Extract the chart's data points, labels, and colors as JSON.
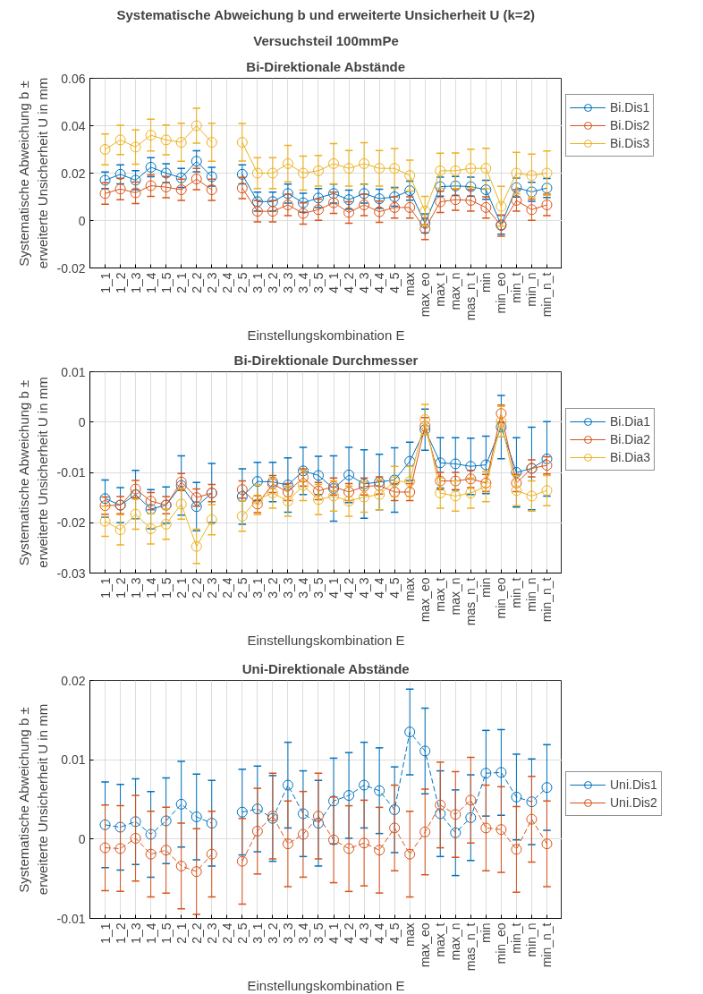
{
  "chart_data": [
    {
      "type": "line",
      "annotations": [
        "Systematische Abweichung b und erweiterte Unsicherheit U (k=2)",
        "Versuchsteil 100mmPe"
      ],
      "title": "Bi-Direktionale Abstände",
      "xlabel": "Einstellungskombination E",
      "ylabel": "Systematische Abweichung b ±\nerweiterte Unsicherheit U in mm",
      "categories": [
        "1_1",
        "1_2",
        "1_3",
        "1_4",
        "1_5",
        "2_1",
        "2_2",
        "2_3",
        "2_4",
        "2_5",
        "3_1",
        "3_2",
        "3_3",
        "3_4",
        "3_5",
        "4_1",
        "4_2",
        "4_3",
        "4_4",
        "4_5",
        "max",
        "max_eo",
        "max_t",
        "max_n",
        "mas_n_t",
        "min",
        "min_eo",
        "min_t",
        "min_n",
        "min_n_t"
      ],
      "ylim": [
        -0.02,
        0.06
      ],
      "yticks": [
        -0.02,
        0,
        0.02,
        0.04,
        0.06
      ],
      "grid": true,
      "legend": "right",
      "marker": "circle",
      "line_style": "solid",
      "series": [
        {
          "name": "Bi.Dis1",
          "color": "#0072bd",
          "values": [
            0.017,
            0.0195,
            0.017,
            0.0225,
            0.02,
            0.018,
            0.025,
            0.0185,
            null,
            0.0195,
            0.008,
            0.008,
            0.0114,
            0.0075,
            0.0095,
            0.0114,
            0.0088,
            0.0114,
            0.0092,
            0.01,
            0.0126,
            -0.0012,
            0.0143,
            0.0146,
            0.0143,
            0.013,
            -0.0018,
            0.0139,
            0.0121,
            0.0137
          ],
          "errors": [
            0.0035,
            0.004,
            0.004,
            0.004,
            0.004,
            0.004,
            0.0044,
            0.004,
            null,
            0.004,
            0.004,
            0.004,
            0.004,
            0.004,
            0.004,
            0.004,
            0.004,
            0.004,
            0.004,
            0.004,
            0.004,
            0.004,
            0.004,
            0.004,
            0.004,
            0.004,
            0.004,
            0.004,
            0.004,
            0.004
          ]
        },
        {
          "name": "Bi.Dis2",
          "color": "#d95319",
          "values": [
            0.0114,
            0.0133,
            0.0117,
            0.0147,
            0.0141,
            0.013,
            0.0175,
            0.013,
            null,
            0.0137,
            0.0039,
            0.0039,
            0.0066,
            0.003,
            0.0046,
            0.0075,
            0.0034,
            0.0066,
            0.0037,
            0.0055,
            0.0055,
            -0.0035,
            0.0079,
            0.0088,
            0.0085,
            0.0055,
            -0.0021,
            0.0085,
            0.0046,
            0.0066
          ],
          "errors": [
            0.0045,
            0.0045,
            0.0045,
            0.0045,
            0.0045,
            0.0045,
            0.0045,
            0.0045,
            null,
            0.0045,
            0.0045,
            0.0045,
            0.0045,
            0.0045,
            0.0045,
            0.0045,
            0.0045,
            0.0045,
            0.0045,
            0.0045,
            0.0045,
            0.0045,
            0.0045,
            0.0045,
            0.0045,
            0.0045,
            0.0045,
            0.0045,
            0.0045,
            0.0045
          ]
        },
        {
          "name": "Bi.Dis3",
          "color": "#edb120",
          "values": [
            0.03,
            0.034,
            0.031,
            0.036,
            0.034,
            0.033,
            0.04,
            0.033,
            null,
            0.033,
            0.02,
            0.02,
            0.024,
            0.02,
            0.021,
            0.024,
            0.022,
            0.024,
            0.022,
            0.022,
            0.019,
            0.004,
            0.021,
            0.021,
            0.022,
            0.022,
            0.006,
            0.02,
            0.019,
            0.02
          ],
          "errors": [
            0.0065,
            0.0062,
            0.0072,
            0.0067,
            0.0063,
            0.008,
            0.0074,
            0.008,
            null,
            0.0079,
            0.0065,
            0.0065,
            0.0077,
            0.0072,
            0.0065,
            0.0085,
            0.0075,
            0.0088,
            0.0075,
            0.0084,
            0.0065,
            0.0062,
            0.0074,
            0.0075,
            0.0081,
            0.0085,
            0.0084,
            0.0088,
            0.009,
            0.0093
          ]
        }
      ]
    },
    {
      "type": "line",
      "title": "Bi-Direktionale Durchmesser",
      "xlabel": "Einstellungskombination E",
      "ylabel": "Systematische Abweichung b ±\nerweiterte Unsicherheit U in mm",
      "categories": [
        "1_1",
        "1_2",
        "1_3",
        "1_4",
        "1_5",
        "2_1",
        "2_2",
        "2_3",
        "2_4",
        "2_5",
        "3_1",
        "3_2",
        "3_3",
        "3_4",
        "3_5",
        "4_1",
        "4_2",
        "4_3",
        "4_4",
        "4_5",
        "max",
        "max_eo",
        "max_t",
        "max_n",
        "mas_n_t",
        "min",
        "min_eo",
        "min_t",
        "min_n",
        "min_n_t"
      ],
      "ylim": [
        -0.03,
        0.01
      ],
      "yticks": [
        -0.03,
        -0.02,
        -0.01,
        0,
        0.01
      ],
      "grid": true,
      "legend": "right",
      "marker": "circle",
      "line_style": "solid",
      "series": [
        {
          "name": "Bi.Dia1",
          "color": "#0072bd",
          "values": [
            -0.0152,
            -0.0165,
            -0.0144,
            -0.0173,
            -0.0165,
            -0.0126,
            -0.0168,
            -0.0141,
            null,
            -0.0148,
            -0.0118,
            -0.0119,
            -0.0125,
            -0.0097,
            -0.0106,
            -0.0132,
            -0.0105,
            -0.0123,
            -0.0119,
            -0.0115,
            -0.0078,
            -0.0015,
            -0.0081,
            -0.0083,
            -0.0088,
            -0.0085,
            -0.001,
            -0.01,
            -0.0092,
            -0.0073
          ],
          "errors": [
            0.0037,
            0.0035,
            0.0048,
            0.0039,
            0.0036,
            0.0059,
            0.0048,
            0.0059,
            null,
            0.0055,
            0.0038,
            0.0039,
            0.0054,
            0.0047,
            0.0038,
            0.0065,
            0.0055,
            0.0068,
            0.0055,
            0.0064,
            0.0038,
            0.0041,
            0.005,
            0.0052,
            0.0056,
            0.0057,
            0.0063,
            0.0069,
            0.0082,
            0.0074
          ]
        },
        {
          "name": "Bi.Dia2",
          "color": "#d95319",
          "values": [
            -0.0166,
            -0.0165,
            -0.0133,
            -0.0157,
            -0.0165,
            -0.0119,
            -0.015,
            -0.0141,
            null,
            -0.0134,
            -0.0163,
            -0.0123,
            -0.0139,
            -0.011,
            -0.0137,
            -0.0128,
            -0.0139,
            -0.0128,
            -0.0126,
            -0.0139,
            -0.0139,
            -0.0008,
            -0.0117,
            -0.0117,
            -0.0113,
            -0.0121,
            0.0017,
            -0.0121,
            -0.0092,
            -0.0086
          ],
          "errors": [
            0.0017,
            0.0017,
            0.0017,
            0.0017,
            0.0017,
            0.0017,
            0.0017,
            0.0017,
            null,
            0.0017,
            0.0017,
            0.0017,
            0.0017,
            0.0017,
            0.0017,
            0.0017,
            0.0017,
            0.0017,
            0.0017,
            0.0017,
            0.0017,
            0.0017,
            0.0017,
            0.0017,
            0.0017,
            0.0017,
            0.0017,
            0.0017,
            0.0017,
            0.0017
          ]
        },
        {
          "name": "Bi.Dia3",
          "color": "#edb120",
          "values": [
            -0.0197,
            -0.0214,
            -0.0183,
            -0.0212,
            -0.0203,
            -0.0163,
            -0.0247,
            -0.0194,
            null,
            -0.0187,
            -0.0154,
            -0.0141,
            -0.0157,
            -0.0126,
            -0.0154,
            -0.0147,
            -0.0157,
            -0.0149,
            -0.0144,
            -0.0118,
            -0.0118,
            0.0005,
            -0.0141,
            -0.0147,
            -0.0141,
            -0.0128,
            0.0001,
            -0.0136,
            -0.0147,
            -0.0136
          ],
          "errors": [
            0.003,
            0.003,
            0.003,
            0.003,
            0.003,
            0.003,
            0.0034,
            0.003,
            null,
            0.003,
            0.003,
            0.003,
            0.003,
            0.003,
            0.003,
            0.003,
            0.003,
            0.003,
            0.003,
            0.003,
            0.003,
            0.003,
            0.003,
            0.003,
            0.003,
            0.003,
            0.003,
            0.003,
            0.003,
            0.003
          ]
        }
      ]
    },
    {
      "type": "line",
      "title": "Uni-Direktionale Abstände",
      "xlabel": "Einstellungskombination E",
      "ylabel": "Systematische Abweichung b ±\nerweiterte Unsicherheit U in mm",
      "categories": [
        "1_1",
        "1_2",
        "1_3",
        "1_4",
        "1_5",
        "2_1",
        "2_2",
        "2_3",
        "2_4",
        "2_5",
        "3_1",
        "3_2",
        "3_3",
        "3_4",
        "3_5",
        "4_1",
        "4_2",
        "4_3",
        "4_4",
        "4_5",
        "max",
        "max_eo",
        "max_t",
        "max_n",
        "mas_n_t",
        "min",
        "min_eo",
        "min_t",
        "min_n",
        "min_n_t"
      ],
      "ylim": [
        -0.01,
        0.02
      ],
      "yticks": [
        -0.01,
        0,
        0.01,
        0.02
      ],
      "grid": true,
      "legend": "right",
      "marker": "circle",
      "line_style": "dashed",
      "series": [
        {
          "name": "Uni.Dis1",
          "color": "#0072bd",
          "values": [
            0.0018,
            0.0015,
            0.0022,
            0.0006,
            0.0023,
            0.0044,
            0.0028,
            0.002,
            null,
            0.0034,
            0.0038,
            0.0026,
            0.0068,
            0.0032,
            0.002,
            0.0048,
            0.0055,
            0.0068,
            0.0061,
            0.0037,
            0.0135,
            0.0111,
            0.0032,
            0.0008,
            0.0027,
            0.0083,
            0.0084,
            0.0053,
            0.0047,
            0.0065
          ],
          "errors": [
            0.0054,
            0.0054,
            0.0054,
            0.0054,
            0.0054,
            0.0054,
            0.0054,
            0.0054,
            null,
            0.0054,
            0.0054,
            0.0054,
            0.0054,
            0.0054,
            0.0054,
            0.0054,
            0.0054,
            0.0054,
            0.0054,
            0.0054,
            0.0054,
            0.0054,
            0.0054,
            0.0054,
            0.0054,
            0.0054,
            0.0054,
            0.0054,
            0.0054,
            0.0054
          ]
        },
        {
          "name": "Uni.Dis2",
          "color": "#d95319",
          "values": [
            -0.0011,
            -0.0012,
            0.0001,
            -0.0019,
            -0.0014,
            -0.0034,
            -0.0041,
            -0.0019,
            null,
            -0.0028,
            0.001,
            0.0029,
            -0.0006,
            0.0006,
            0.0029,
            -0.0001,
            -0.0012,
            -0.0005,
            -0.0014,
            0.0014,
            -0.0019,
            0.0009,
            0.0043,
            0.0031,
            0.0049,
            0.0014,
            0.0012,
            -0.0013,
            0.0025,
            -0.0006
          ],
          "errors": [
            0.0054,
            0.0054,
            0.0054,
            0.0054,
            0.0054,
            0.0054,
            0.0054,
            0.0054,
            null,
            0.0054,
            0.0054,
            0.0054,
            0.0054,
            0.0054,
            0.0054,
            0.0054,
            0.0054,
            0.0054,
            0.0054,
            0.0054,
            0.0054,
            0.0054,
            0.0054,
            0.0054,
            0.0054,
            0.0054,
            0.0054,
            0.0054,
            0.0054,
            0.0054
          ]
        }
      ]
    }
  ]
}
